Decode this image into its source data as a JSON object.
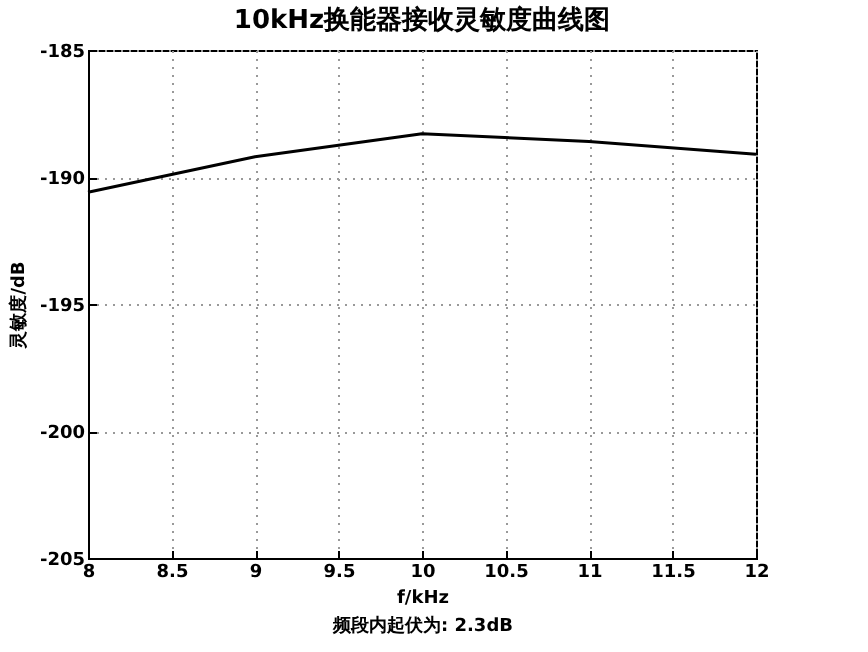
{
  "chart_data": {
    "type": "line",
    "title": "10kHz换能器接收灵敏度曲线图",
    "xlabel": "f/kHz",
    "ylabel": "灵敏度/dB",
    "annotations": [
      "频段内起伏为: 2.3dB"
    ],
    "x": [
      8,
      9,
      10,
      11,
      12
    ],
    "series": [
      {
        "color": "#000000",
        "values": [
          -190.6,
          -189.2,
          -188.3,
          -188.6,
          -189.1
        ]
      }
    ],
    "xlim": [
      8,
      12
    ],
    "xticks": [
      8,
      8.5,
      9,
      9.5,
      10,
      10.5,
      11,
      11.5,
      12
    ],
    "ylim": [
      -205,
      -185
    ],
    "yticks": [
      -205,
      -200,
      -195,
      -190,
      -185
    ],
    "grid": true,
    "marker": "none",
    "line_style": "solid"
  }
}
